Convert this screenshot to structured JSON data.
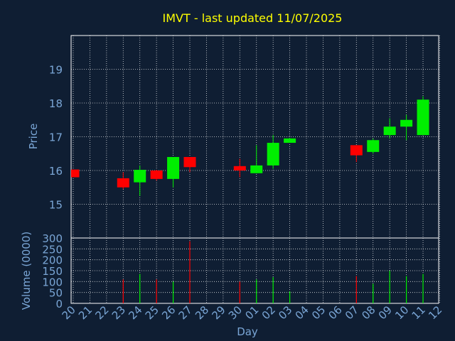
{
  "colors": {
    "background": "#0f1e33",
    "title": "#ffff00",
    "axis_text": "#7aa6d6",
    "grid": "#ffffff",
    "frame": "#ffffff",
    "up": "#00ee00",
    "down": "#ff0000"
  },
  "chart_data": [
    {
      "type": "candlestick",
      "title": "IMVT - last updated 11/07/2025",
      "ylabel": "Price",
      "ylim": [
        14.0,
        20.0
      ],
      "yticks": [
        "15",
        "16",
        "17",
        "18",
        "19"
      ],
      "grid": true,
      "x": [
        "20",
        "21",
        "22",
        "23",
        "24",
        "25",
        "26",
        "27",
        "28",
        "29",
        "30",
        "01",
        "02",
        "03",
        "04",
        "05",
        "06",
        "07",
        "08",
        "09",
        "10",
        "11",
        "12"
      ],
      "candles": [
        {
          "x": "20",
          "open": 16.03,
          "high": 16.03,
          "low": 15.8,
          "close": 15.8
        },
        {
          "x": "23",
          "open": 15.77,
          "high": 15.95,
          "low": 15.45,
          "close": 15.5
        },
        {
          "x": "24",
          "open": 15.65,
          "high": 16.15,
          "low": 15.25,
          "close": 16.02
        },
        {
          "x": "25",
          "open": 16.0,
          "high": 16.02,
          "low": 15.7,
          "close": 15.75
        },
        {
          "x": "26",
          "open": 15.75,
          "high": 16.4,
          "low": 15.5,
          "close": 16.4
        },
        {
          "x": "27",
          "open": 16.4,
          "high": 16.4,
          "low": 15.95,
          "close": 16.1
        },
        {
          "x": "30",
          "open": 16.13,
          "high": 16.35,
          "low": 15.8,
          "close": 16.0
        },
        {
          "x": "01",
          "open": 15.92,
          "high": 16.75,
          "low": 15.92,
          "close": 16.15
        },
        {
          "x": "02",
          "open": 16.15,
          "high": 17.05,
          "low": 16.05,
          "close": 16.82
        },
        {
          "x": "03",
          "open": 16.82,
          "high": 16.97,
          "low": 16.82,
          "close": 16.95
        },
        {
          "x": "07",
          "open": 16.75,
          "high": 16.75,
          "low": 16.25,
          "close": 16.45
        },
        {
          "x": "08",
          "open": 16.55,
          "high": 16.95,
          "low": 16.5,
          "close": 16.9
        },
        {
          "x": "09",
          "open": 17.05,
          "high": 17.55,
          "low": 16.95,
          "close": 17.3
        },
        {
          "x": "10",
          "open": 17.3,
          "high": 17.65,
          "low": 16.9,
          "close": 17.5
        },
        {
          "x": "11",
          "open": 17.05,
          "high": 18.2,
          "low": 17.05,
          "close": 18.1
        }
      ]
    },
    {
      "type": "bar",
      "xlabel": "Day",
      "ylabel": "Volume (0000)",
      "ylim": [
        0,
        300
      ],
      "yticks": [
        "0",
        "50",
        "100",
        "150",
        "200",
        "250",
        "300"
      ],
      "grid": true,
      "categories": [
        "20",
        "21",
        "22",
        "23",
        "24",
        "25",
        "26",
        "27",
        "28",
        "29",
        "30",
        "01",
        "02",
        "03",
        "04",
        "05",
        "06",
        "07",
        "08",
        "09",
        "10",
        "11",
        "12"
      ],
      "bars": [
        {
          "x": "23",
          "value": 110,
          "color": "down"
        },
        {
          "x": "24",
          "value": 135,
          "color": "up"
        },
        {
          "x": "25",
          "value": 110,
          "color": "down"
        },
        {
          "x": "26",
          "value": 100,
          "color": "up"
        },
        {
          "x": "27",
          "value": 285,
          "color": "down"
        },
        {
          "x": "30",
          "value": 100,
          "color": "down"
        },
        {
          "x": "01",
          "value": 110,
          "color": "up"
        },
        {
          "x": "02",
          "value": 120,
          "color": "up"
        },
        {
          "x": "03",
          "value": 55,
          "color": "up"
        },
        {
          "x": "07",
          "value": 125,
          "color": "down"
        },
        {
          "x": "08",
          "value": 90,
          "color": "up"
        },
        {
          "x": "09",
          "value": 150,
          "color": "up"
        },
        {
          "x": "10",
          "value": 125,
          "color": "up"
        },
        {
          "x": "11",
          "value": 135,
          "color": "up"
        }
      ]
    }
  ]
}
